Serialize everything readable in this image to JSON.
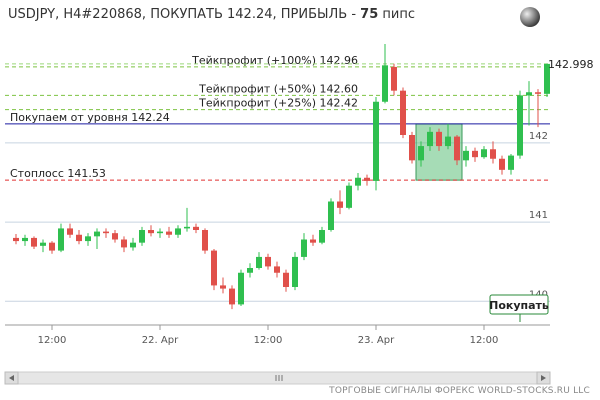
{
  "chart_data": {
    "type": "candlestick",
    "title": "USDJPY, H4#220868, ПОКУПАТЬ 142.24, ПРИБЫЛЬ -",
    "title_bold": "75",
    "title_tail": "пипс",
    "footer": "ТОРГОВЫЕ СИГНАЛЫ ФОРЕКС WORLD-STOCKS.RU LLC",
    "button": "Покупать",
    "up_color": "#2fbf4f",
    "down_color": "#e0504a",
    "ylim": [
      139.7,
      143.3
    ],
    "yticks": [
      140,
      141,
      142
    ],
    "xticks": [
      {
        "value": 4,
        "label": "12:00"
      },
      {
        "value": 16,
        "label": "22. Apr"
      },
      {
        "value": 28,
        "label": "12:00"
      },
      {
        "value": 40,
        "label": "23. Apr"
      },
      {
        "value": 52,
        "label": "12:00"
      }
    ],
    "last_price": 142.998,
    "levels": [
      {
        "label": "Тейкпрофит (+100%) 142.96",
        "value": 142.96,
        "color": "#7dc242",
        "style": "dashed"
      },
      {
        "label": "Тейкпрофит (+50%) 142.60",
        "value": 142.6,
        "color": "#7dc242",
        "style": "dashed"
      },
      {
        "label": "Тейкпрофит (+25%) 142.42",
        "value": 142.42,
        "color": "#7dc242",
        "style": "dashed"
      },
      {
        "label": "Покупаем от уровня 142.24",
        "value": 142.24,
        "color": "#1a1aa0",
        "style": "solid"
      },
      {
        "label": "Стоплосс 141.53",
        "value": 141.53,
        "color": "#e03030",
        "style": "dashed"
      }
    ],
    "zone": {
      "x": [
        45,
        49
      ],
      "y": [
        141.53,
        142.24
      ],
      "color": "#5cc07a"
    },
    "ohlc": [
      [
        140.8,
        140.85,
        140.72,
        140.76
      ],
      [
        140.76,
        140.84,
        140.7,
        140.8
      ],
      [
        140.8,
        140.82,
        140.66,
        140.69
      ],
      [
        140.7,
        140.78,
        140.62,
        140.74
      ],
      [
        140.74,
        140.76,
        140.6,
        140.64
      ],
      [
        140.64,
        140.98,
        140.62,
        140.92
      ],
      [
        140.92,
        140.98,
        140.8,
        140.84
      ],
      [
        140.84,
        140.9,
        140.72,
        140.76
      ],
      [
        140.76,
        140.86,
        140.7,
        140.82
      ],
      [
        140.82,
        140.92,
        140.66,
        140.88
      ],
      [
        140.88,
        140.92,
        140.8,
        140.86
      ],
      [
        140.86,
        140.9,
        140.74,
        140.78
      ],
      [
        140.78,
        140.82,
        140.62,
        140.68
      ],
      [
        140.68,
        140.8,
        140.64,
        140.74
      ],
      [
        140.74,
        140.94,
        140.7,
        140.9
      ],
      [
        140.9,
        140.96,
        140.82,
        140.86
      ],
      [
        140.86,
        140.92,
        140.8,
        140.88
      ],
      [
        140.88,
        140.94,
        140.8,
        140.84
      ],
      [
        140.84,
        140.96,
        140.8,
        140.92
      ],
      [
        140.92,
        141.18,
        140.88,
        140.94
      ],
      [
        140.94,
        140.98,
        140.86,
        140.9
      ],
      [
        140.9,
        140.92,
        140.6,
        140.64
      ],
      [
        140.64,
        140.66,
        140.14,
        140.2
      ],
      [
        140.2,
        140.3,
        140.1,
        140.16
      ],
      [
        140.16,
        140.2,
        139.9,
        139.96
      ],
      [
        139.96,
        140.4,
        139.94,
        140.36
      ],
      [
        140.36,
        140.48,
        140.3,
        140.42
      ],
      [
        140.42,
        140.62,
        140.4,
        140.56
      ],
      [
        140.56,
        140.6,
        140.4,
        140.44
      ],
      [
        140.44,
        140.5,
        140.3,
        140.36
      ],
      [
        140.36,
        140.4,
        140.12,
        140.18
      ],
      [
        140.18,
        140.62,
        140.14,
        140.56
      ],
      [
        140.56,
        140.86,
        140.52,
        140.78
      ],
      [
        140.78,
        140.84,
        140.7,
        140.74
      ],
      [
        140.74,
        140.94,
        140.72,
        140.9
      ],
      [
        140.9,
        141.3,
        140.88,
        141.26
      ],
      [
        141.26,
        141.4,
        141.1,
        141.18
      ],
      [
        141.18,
        141.5,
        141.16,
        141.46
      ],
      [
        141.46,
        141.62,
        141.4,
        141.56
      ],
      [
        141.56,
        141.6,
        141.46,
        141.52
      ],
      [
        141.52,
        142.58,
        141.4,
        142.52
      ],
      [
        142.52,
        143.25,
        142.5,
        142.98
      ],
      [
        142.96,
        143.0,
        142.6,
        142.66
      ],
      [
        142.66,
        142.7,
        142.06,
        142.1
      ],
      [
        142.1,
        142.14,
        141.74,
        141.78
      ],
      [
        141.78,
        142.02,
        141.7,
        141.96
      ],
      [
        141.96,
        142.2,
        141.9,
        142.14
      ],
      [
        142.14,
        142.18,
        141.9,
        141.96
      ],
      [
        141.96,
        142.24,
        141.92,
        142.08
      ],
      [
        142.08,
        142.1,
        141.72,
        141.78
      ],
      [
        141.78,
        141.96,
        141.7,
        141.9
      ],
      [
        141.9,
        141.94,
        141.76,
        141.82
      ],
      [
        141.82,
        141.96,
        141.8,
        141.92
      ],
      [
        141.92,
        142.02,
        141.74,
        141.8
      ],
      [
        141.8,
        141.84,
        141.6,
        141.66
      ],
      [
        141.66,
        141.86,
        141.6,
        141.84
      ],
      [
        141.84,
        142.66,
        141.8,
        142.6
      ],
      [
        142.6,
        142.78,
        142.22,
        142.64
      ],
      [
        142.64,
        142.68,
        142.2,
        142.62
      ],
      [
        142.62,
        143.0,
        142.58,
        142.998
      ]
    ]
  }
}
